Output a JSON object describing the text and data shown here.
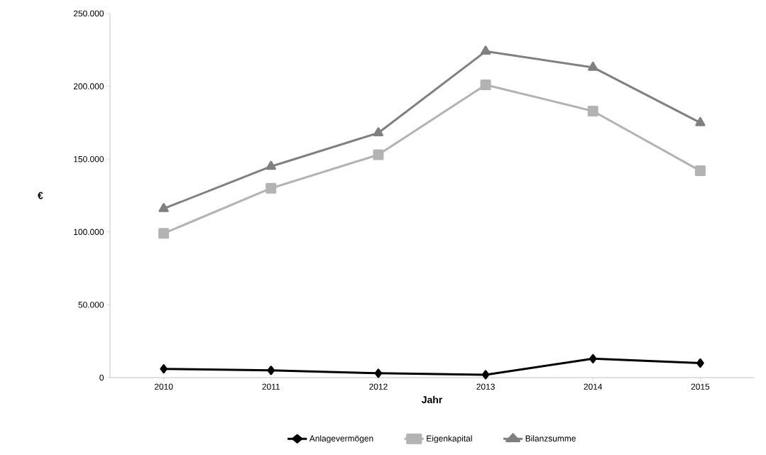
{
  "chart_data": {
    "type": "line",
    "xlabel": "Jahr",
    "ylabel": "€",
    "categories": [
      "2010",
      "2011",
      "2012",
      "2013",
      "2014",
      "2015"
    ],
    "ylim": [
      0,
      250000
    ],
    "yticks": [
      {
        "value": 0,
        "label": "0"
      },
      {
        "value": 50000,
        "label": "50.000"
      },
      {
        "value": 100000,
        "label": "100.000"
      },
      {
        "value": 150000,
        "label": "150.000"
      },
      {
        "value": 200000,
        "label": "200.000"
      },
      {
        "value": 250000,
        "label": "250.000"
      }
    ],
    "legend": "bottom",
    "grid": false,
    "series": [
      {
        "name": "Anlagevermögen",
        "color": "#000000",
        "marker": "diamond",
        "values": [
          6000,
          5000,
          3000,
          2000,
          13000,
          10000
        ]
      },
      {
        "name": "Eigenkapital",
        "color": "#b3b3b3",
        "marker": "square",
        "values": [
          99000,
          130000,
          153000,
          201000,
          183000,
          142000
        ]
      },
      {
        "name": "Bilanzsumme",
        "color": "#808080",
        "marker": "triangle",
        "values": [
          116000,
          145000,
          168000,
          224000,
          213000,
          175000
        ]
      }
    ]
  }
}
